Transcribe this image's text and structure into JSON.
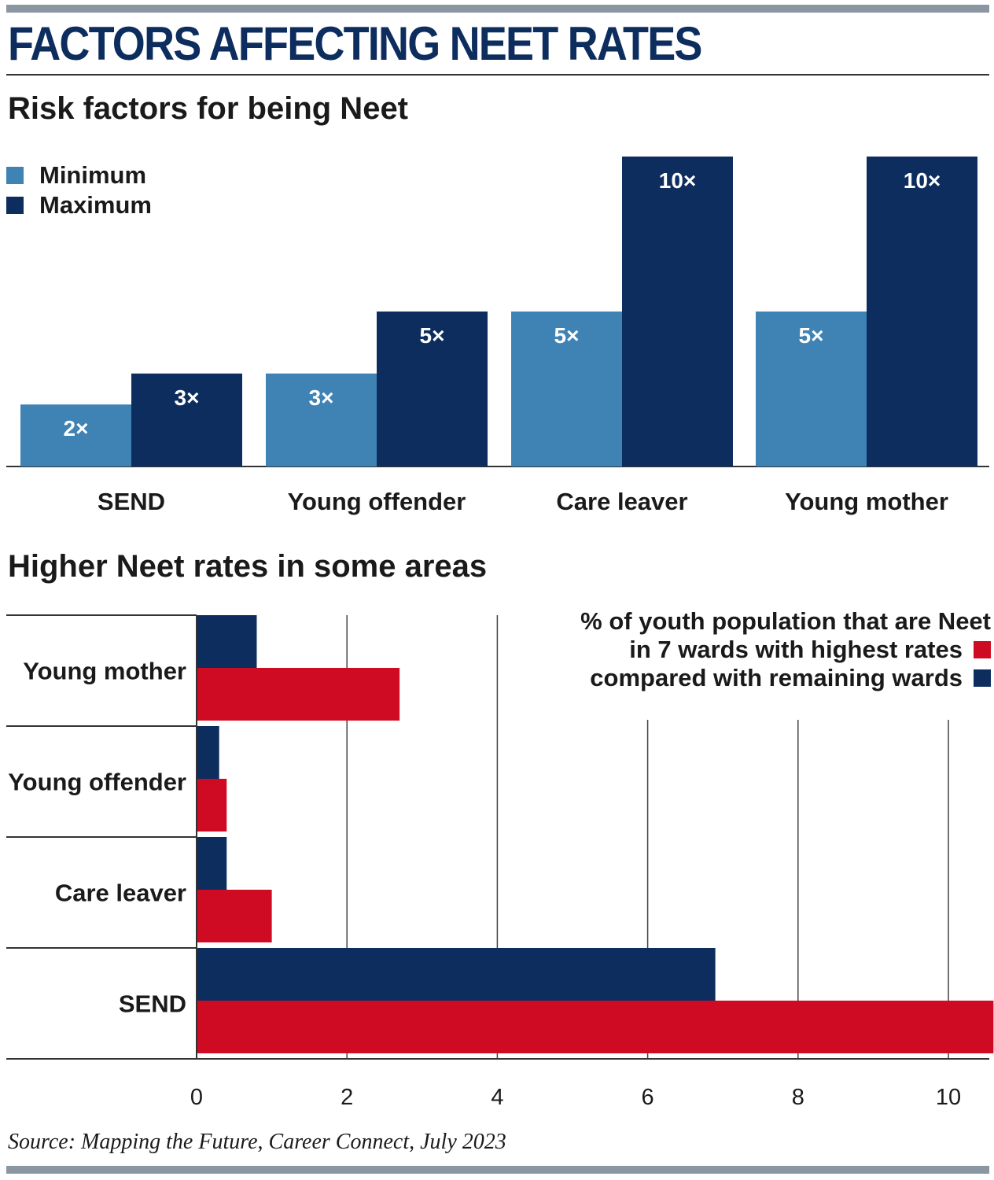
{
  "title": "FACTORS AFFECTING NEET RATES",
  "colors": {
    "minimum": "#3f82b4",
    "maximum": "#0c2d5e",
    "highest_wards": "#cf0a23",
    "remaining_wards": "#0c2d5e",
    "rule": "#8a96a1"
  },
  "source": "Source: Mapping the Future, Career Connect, July 2023",
  "chart_data": [
    {
      "type": "bar",
      "title": "Risk factors for being Neet",
      "categories": [
        "SEND",
        "Young offender",
        "Care leaver",
        "Young mother"
      ],
      "series": [
        {
          "name": "Minimum",
          "values": [
            2,
            3,
            5,
            5
          ],
          "labels": [
            "2×",
            "3×",
            "5×",
            "5×"
          ]
        },
        {
          "name": "Maximum",
          "values": [
            3,
            5,
            10,
            10
          ],
          "labels": [
            "3×",
            "5×",
            "10×",
            "10×"
          ]
        }
      ],
      "ylim": [
        0,
        10
      ],
      "legend": "top-left",
      "grid": false
    },
    {
      "type": "bar",
      "orientation": "horizontal",
      "title": "Higher Neet rates in some areas",
      "legend_title": "% of youth population that are Neet",
      "categories": [
        "Young mother",
        "Young offender",
        "Care leaver",
        "SEND"
      ],
      "series": [
        {
          "name": "compared with remaining wards",
          "values": [
            0.8,
            0.3,
            0.4,
            6.9
          ]
        },
        {
          "name": "in 7 wards with highest rates",
          "values": [
            2.7,
            0.4,
            1.0,
            10.6
          ]
        }
      ],
      "xticks": [
        "0",
        "2",
        "4",
        "6",
        "8",
        "10"
      ],
      "xlim": [
        0,
        10.6
      ],
      "grid": true,
      "legend": "top-right"
    }
  ]
}
